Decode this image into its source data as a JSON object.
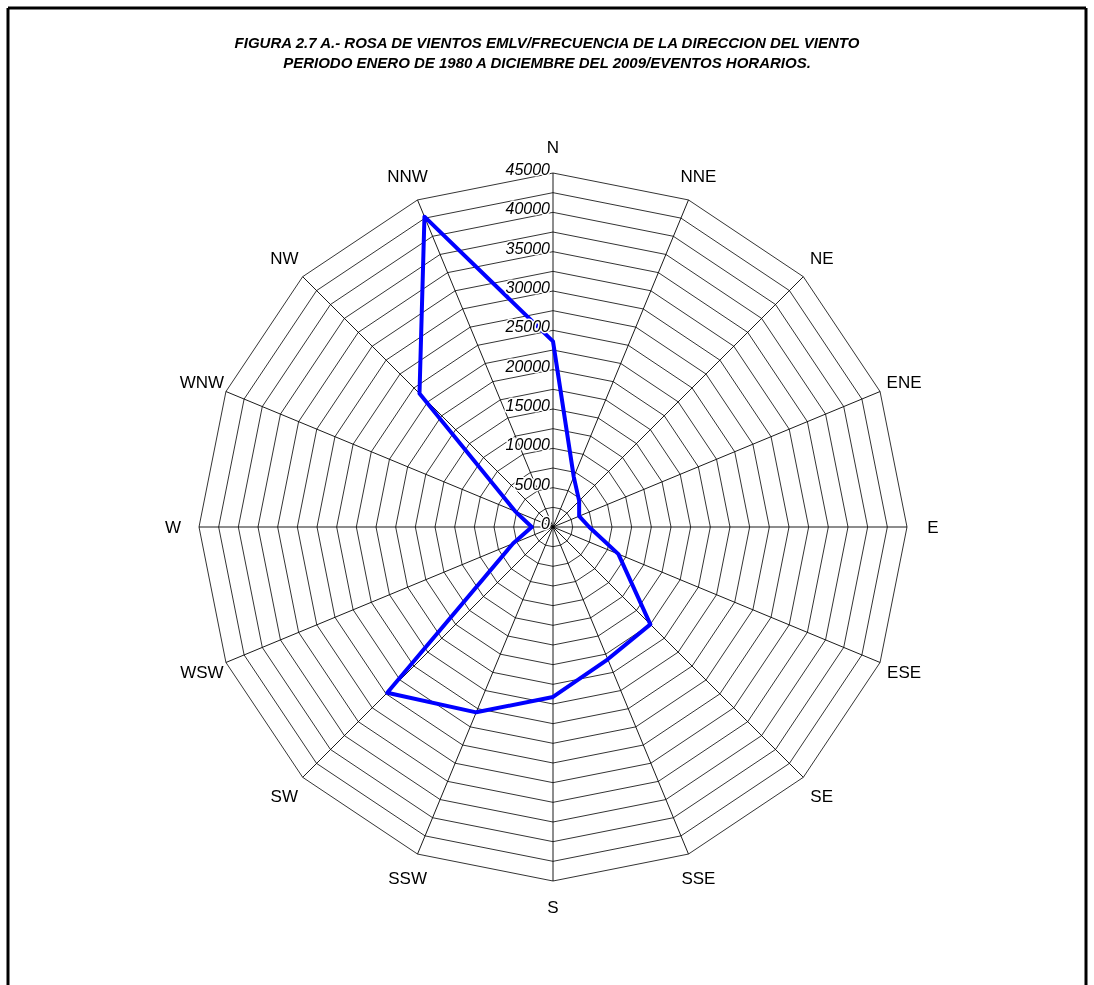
{
  "chart_data": {
    "type": "radar",
    "title": "FIGURA 2.7 A.- ROSA DE VIENTOS EMLV/FRECUENCIA DE LA DIRECCION DEL VIENTO\nPERIODO ENERO DE 1980 A DICIEMBRE DEL 2009/EVENTOS HORARIOS.",
    "categories": [
      "N",
      "NNE",
      "NE",
      "ENE",
      "E",
      "ESE",
      "SE",
      "SSE",
      "S",
      "SSW",
      "SW",
      "WSW",
      "W",
      "WNW",
      "NW",
      "NNW"
    ],
    "series": [
      {
        "color": "#0000ff",
        "values": [
          23600,
          6900,
          4700,
          3600,
          4600,
          9000,
          17500,
          18200,
          21600,
          25500,
          29800,
          5500,
          2700,
          5200,
          24000,
          42700
        ]
      }
    ],
    "ylim": [
      0,
      45000
    ],
    "yticks": [
      0,
      5000,
      10000,
      15000,
      20000,
      25000,
      30000,
      35000,
      40000,
      45000
    ],
    "grid": true,
    "marker": "none"
  }
}
